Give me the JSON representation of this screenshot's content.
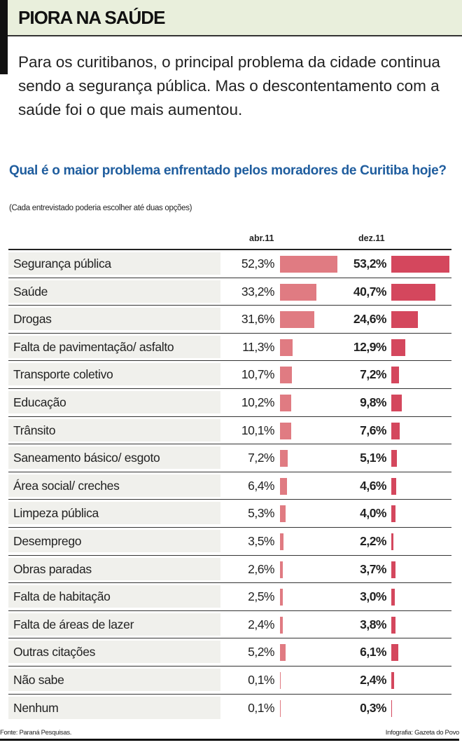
{
  "header": {
    "title": "PIORA NA SAÚDE"
  },
  "lead": "Para os curitibanos, o principal problema da cidade continua sendo a segurança pública. Mas o descontentamento com a saúde foi o que mais aumentou.",
  "chart_data": {
    "type": "bar",
    "title": "Qual é o maior problema enfrentado pelos moradores de Curitiba hoje?",
    "subtitle": "(Cada entrevistado poderia escolher até duas opções)",
    "categories": [
      "Segurança pública",
      "Saúde",
      "Drogas",
      "Falta de pavimentação/ asfalto",
      "Transporte coletivo",
      "Educação",
      "Trânsito",
      "Saneamento básico/ esgoto",
      "Área social/ creches",
      "Limpeza pública",
      "Desemprego",
      "Obras paradas",
      "Falta de habitação",
      "Falta de áreas de lazer",
      "Outras citações",
      "Não sabe",
      "Nenhum"
    ],
    "series": [
      {
        "name": "abr.11",
        "color": "#e07b82",
        "values": [
          52.3,
          33.2,
          31.6,
          11.3,
          10.7,
          10.2,
          10.1,
          7.2,
          6.4,
          5.3,
          3.5,
          2.6,
          2.5,
          2.4,
          5.2,
          0.1,
          0.1
        ],
        "labels": [
          "52,3%",
          "33,2%",
          "31,6%",
          "11,3%",
          "10,7%",
          "10,2%",
          "10,1%",
          "7,2%",
          "6,4%",
          "5,3%",
          "3,5%",
          "2,6%",
          "2,5%",
          "2,4%",
          "5,2%",
          "0,1%",
          "0,1%"
        ]
      },
      {
        "name": "dez.11",
        "color": "#d4475d",
        "values": [
          53.2,
          40.7,
          24.6,
          12.9,
          7.2,
          9.8,
          7.6,
          5.1,
          4.6,
          4.0,
          2.2,
          3.7,
          3.0,
          3.8,
          6.1,
          2.4,
          0.3
        ],
        "labels": [
          "53,2%",
          "40,7%",
          "24,6%",
          "12,9%",
          "7,2%",
          "9,8%",
          "7,6%",
          "5,1%",
          "4,6%",
          "4,0%",
          "2,2%",
          "3,7%",
          "3,0%",
          "3,8%",
          "6,1%",
          "2,4%",
          "0,3%"
        ]
      }
    ]
  },
  "footer": {
    "source": "Fonte: Paraná Pesquisas.",
    "credit": "Infografia: Gazeta do Povo"
  }
}
